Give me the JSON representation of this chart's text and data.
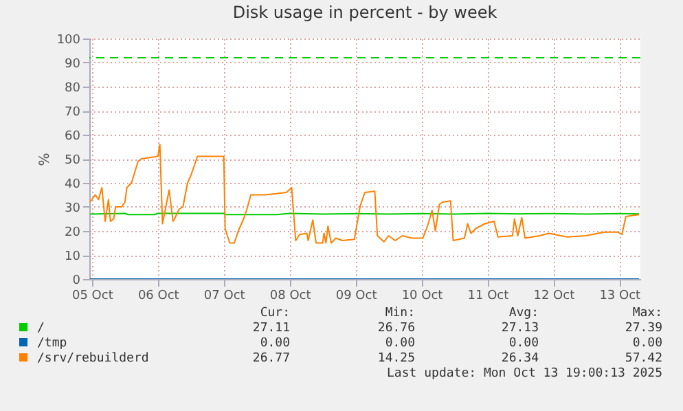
{
  "chart_data": {
    "type": "line",
    "title": "Disk usage in percent - by week",
    "ylabel": "%",
    "xlim": [
      "2025-10-04T23:02",
      "2025-10-13T07:41"
    ],
    "xticks": [
      {
        "value": "2025-10-05",
        "label": "05 Oct"
      },
      {
        "value": "2025-10-06",
        "label": "06 Oct"
      },
      {
        "value": "2025-10-07",
        "label": "07 Oct"
      },
      {
        "value": "2025-10-08",
        "label": "08 Oct"
      },
      {
        "value": "2025-10-09",
        "label": "09 Oct"
      },
      {
        "value": "2025-10-10",
        "label": "10 Oct"
      },
      {
        "value": "2025-10-11",
        "label": "11 Oct"
      },
      {
        "value": "2025-10-12",
        "label": "12 Oct"
      },
      {
        "value": "2025-10-13",
        "label": "13 Oct"
      }
    ],
    "ylim": [
      0,
      100
    ],
    "yticks": [
      0,
      10,
      20,
      30,
      40,
      50,
      60,
      70,
      80,
      90,
      100
    ],
    "grid": true,
    "legend": "bottom",
    "series": [
      {
        "name": "/",
        "color": "#00cc00",
        "x": [
          "2025-10-04T23:17",
          "2025-10-05T12:00",
          "2025-10-05T13:12",
          "2025-10-05T22:48",
          "2025-10-06T00:00",
          "2025-10-07T00:00",
          "2025-10-07T00:29",
          "2025-10-07T19:12",
          "2025-10-08T00:00",
          "2025-10-08T12:00",
          "2025-10-09T00:00",
          "2025-10-09T12:00",
          "2025-10-10T00:00",
          "2025-10-10T12:00",
          "2025-10-11T00:00",
          "2025-10-11T12:00",
          "2025-10-12T00:00",
          "2025-10-12T12:00",
          "2025-10-13T00:00",
          "2025-10-13T07:12"
        ],
        "values": [
          27,
          27.3,
          26.8,
          26.8,
          27.3,
          27.3,
          26.8,
          26.8,
          27.3,
          27,
          27.2,
          27,
          27.2,
          27,
          27.3,
          27.1,
          27.2,
          27,
          27.2,
          27.1
        ]
      },
      {
        "name": "/tmp",
        "color": "#0066b3",
        "x": [
          "2025-10-04T23:17",
          "2025-10-13T07:12"
        ],
        "values": [
          0,
          0
        ]
      },
      {
        "name": "/srv/rebuilderd",
        "color": "#ff8000",
        "x": [
          "2025-10-04T23:17",
          "2025-10-05T01:12",
          "2025-10-05T02:24",
          "2025-10-05T03:36",
          "2025-10-05T04:48",
          "2025-10-05T06:00",
          "2025-10-05T06:43",
          "2025-10-05T07:55",
          "2025-10-05T08:38",
          "2025-10-05T10:48",
          "2025-10-05T12:00",
          "2025-10-05T12:43",
          "2025-10-05T14:24",
          "2025-10-05T16:48",
          "2025-10-05T18:00",
          "2025-10-06T00:00",
          "2025-10-06T00:43",
          "2025-10-06T01:41",
          "2025-10-06T02:53",
          "2025-10-06T04:05",
          "2025-10-06T05:31",
          "2025-10-06T06:29",
          "2025-10-06T07:41",
          "2025-10-06T09:07",
          "2025-10-06T10:48",
          "2025-10-06T12:00",
          "2025-10-06T14:24",
          "2025-10-07T00:00",
          "2025-10-07T00:29",
          "2025-10-07T02:10",
          "2025-10-07T03:50",
          "2025-10-07T05:17",
          "2025-10-07T07:12",
          "2025-10-07T08:24",
          "2025-10-07T09:50",
          "2025-10-07T15:07",
          "2025-10-07T19:12",
          "2025-10-07T22:48",
          "2025-10-08T00:43",
          "2025-10-08T02:10",
          "2025-10-08T03:36",
          "2025-10-08T06:14",
          "2025-10-08T06:43",
          "2025-10-08T08:24",
          "2025-10-08T09:36",
          "2025-10-08T12:00",
          "2025-10-08T12:29",
          "2025-10-08T13:12",
          "2025-10-08T13:55",
          "2025-10-08T15:07",
          "2025-10-08T16:48",
          "2025-10-08T19:12",
          "2025-10-08T23:31",
          "2025-10-09T01:41",
          "2025-10-09T03:22",
          "2025-10-09T06:58",
          "2025-10-09T07:55",
          "2025-10-09T10:19",
          "2025-10-09T12:00",
          "2025-10-09T14:24",
          "2025-10-09T17:02",
          "2025-10-09T20:24",
          "2025-10-10T00:29",
          "2025-10-10T02:10",
          "2025-10-10T03:50",
          "2025-10-10T05:02",
          "2025-10-10T06:29",
          "2025-10-10T07:41",
          "2025-10-10T10:34",
          "2025-10-10T11:31",
          "2025-10-10T15:36",
          "2025-10-10T16:48",
          "2025-10-10T18:00",
          "2025-10-10T19:41",
          "2025-10-10T23:02",
          "2025-10-11T02:24",
          "2025-10-11T03:50",
          "2025-10-11T09:07",
          "2025-10-11T09:50",
          "2025-10-11T11:02",
          "2025-10-11T12:29",
          "2025-10-11T13:41",
          "2025-10-11T18:58",
          "2025-10-11T22:19",
          "2025-10-12T05:02",
          "2025-10-12T11:46",
          "2025-10-12T18:29",
          "2025-10-12T23:31",
          "2025-10-13T00:58",
          "2025-10-13T02:24",
          "2025-10-13T05:17",
          "2025-10-13T07:12"
        ],
        "values": [
          32,
          35,
          33,
          38,
          24,
          33,
          24,
          25,
          30,
          30,
          32,
          38,
          40,
          49,
          50,
          51,
          56,
          23,
          30,
          37,
          24,
          26,
          29,
          30,
          40,
          43,
          51,
          51,
          21,
          15,
          15,
          20,
          25,
          29,
          35,
          35,
          35.5,
          36,
          38,
          16,
          18.5,
          19,
          16,
          24.5,
          15,
          15,
          19,
          15,
          22,
          15,
          17,
          16,
          16.5,
          30.5,
          36,
          36.5,
          18,
          15.5,
          18,
          16,
          18,
          17,
          17,
          22,
          28.5,
          20,
          31,
          32,
          32.5,
          16,
          17,
          23,
          19,
          21,
          23,
          24,
          17.5,
          18,
          25,
          18,
          25.5,
          17,
          18,
          19,
          17.5,
          18,
          19.5,
          19.5,
          18.5,
          26,
          26.5,
          26.8
        ]
      }
    ],
    "ref_lines": [
      {
        "axis": "y",
        "value": 92,
        "color": "#00cc00",
        "line_style": "dashed"
      }
    ],
    "annotations": [
      "Cur:",
      "Min:",
      "Avg:",
      "Max:",
      "27.11",
      "26.76",
      "27.13",
      "27.39",
      "0.00",
      "0.00",
      "0.00",
      "0.00",
      "26.77",
      "14.25",
      "26.34",
      "57.42",
      "Last update: Mon Oct 13 19:00:13 2025"
    ]
  }
}
